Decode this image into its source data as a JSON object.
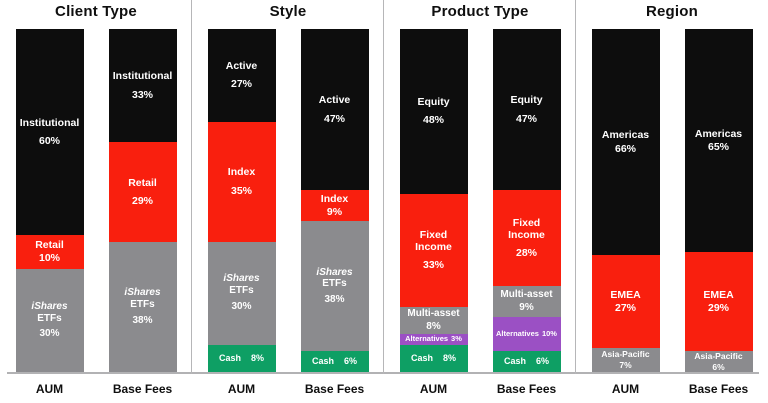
{
  "chart_data": {
    "type": "bar",
    "subtype": "stacked-100-percent",
    "unit": "%",
    "legend_position": "none",
    "grid": false,
    "palette": {
      "black": "#0d0d0d",
      "red": "#f91f0e",
      "gray": "#8b8b8e",
      "green": "#0e9f64",
      "purple": "#9b50c4",
      "baseline": "#b2b2b4",
      "divider": "#b6b6b8",
      "label_text": "#ffffff",
      "title_text": "#0f0f0f"
    },
    "groups": [
      {
        "title": "Client Type",
        "bars": [
          {
            "axis_label": "AUM",
            "segments": [
              {
                "lines": [
                  "Institutional"
                ],
                "value": "60%",
                "pct": 60,
                "color": "black",
                "size": "md"
              },
              {
                "lines": [
                  "Retail"
                ],
                "value": "10%",
                "pct": 10,
                "color": "red",
                "size": "md",
                "tight": true
              },
              {
                "lines": [
                  "iShares",
                  "ETFs"
                ],
                "value": "30%",
                "pct": 30,
                "color": "gray",
                "size": "sm",
                "italic_first": true
              }
            ]
          },
          {
            "axis_label": "Base Fees",
            "segments": [
              {
                "lines": [
                  "Institutional"
                ],
                "value": "33%",
                "pct": 33,
                "color": "black",
                "size": "md"
              },
              {
                "lines": [
                  "Retail"
                ],
                "value": "29%",
                "pct": 29,
                "color": "red",
                "size": "md"
              },
              {
                "lines": [
                  "iShares",
                  "ETFs"
                ],
                "value": "38%",
                "pct": 38,
                "color": "gray",
                "size": "sm",
                "italic_first": true
              }
            ]
          }
        ]
      },
      {
        "title": "Style",
        "bars": [
          {
            "axis_label": "AUM",
            "segments": [
              {
                "lines": [
                  "Active"
                ],
                "value": "27%",
                "pct": 27,
                "color": "black",
                "size": "md"
              },
              {
                "lines": [
                  "Index"
                ],
                "value": "35%",
                "pct": 35,
                "color": "red",
                "size": "md"
              },
              {
                "lines": [
                  "iShares",
                  "ETFs"
                ],
                "value": "30%",
                "pct": 30,
                "color": "gray",
                "size": "sm",
                "italic_first": true
              },
              {
                "lines": [
                  "Cash"
                ],
                "value": "8%",
                "pct": 8,
                "color": "green",
                "size": "cash",
                "inline": true
              }
            ]
          },
          {
            "axis_label": "Base Fees",
            "segments": [
              {
                "lines": [
                  "Active"
                ],
                "value": "47%",
                "pct": 47,
                "color": "black",
                "size": "md"
              },
              {
                "lines": [
                  "Index"
                ],
                "value": "9%",
                "pct": 9,
                "color": "red",
                "size": "md",
                "tight": true
              },
              {
                "lines": [
                  "iShares",
                  "ETFs"
                ],
                "value": "38%",
                "pct": 38,
                "color": "gray",
                "size": "sm",
                "italic_first": true
              },
              {
                "lines": [
                  "Cash"
                ],
                "value": "6%",
                "pct": 6,
                "color": "green",
                "size": "cash",
                "inline": true
              }
            ]
          }
        ]
      },
      {
        "title": "Product Type",
        "bars": [
          {
            "axis_label": "AUM",
            "segments": [
              {
                "lines": [
                  "Equity"
                ],
                "value": "48%",
                "pct": 48,
                "color": "black",
                "size": "md"
              },
              {
                "lines": [
                  "Fixed",
                  "Income"
                ],
                "value": "33%",
                "pct": 33,
                "color": "red",
                "size": "md"
              },
              {
                "lines": [
                  "Multi-asset"
                ],
                "value": "8%",
                "pct": 8,
                "color": "gray",
                "size": "sm",
                "tight": true
              },
              {
                "lines": [
                  "Alternatives"
                ],
                "value": "3%",
                "pct": 3,
                "color": "purple",
                "size": "xs",
                "inline": true
              },
              {
                "lines": [
                  "Cash"
                ],
                "value": "8%",
                "pct": 8,
                "color": "green",
                "size": "cash",
                "inline": true
              }
            ]
          },
          {
            "axis_label": "Base Fees",
            "segments": [
              {
                "lines": [
                  "Equity"
                ],
                "value": "47%",
                "pct": 47,
                "color": "black",
                "size": "md"
              },
              {
                "lines": [
                  "Fixed",
                  "Income"
                ],
                "value": "28%",
                "pct": 28,
                "color": "red",
                "size": "md"
              },
              {
                "lines": [
                  "Multi-asset"
                ],
                "value": "9%",
                "pct": 9,
                "color": "gray",
                "size": "sm",
                "tight": true
              },
              {
                "lines": [
                  "Alternatives"
                ],
                "value": "10%",
                "pct": 10,
                "color": "purple",
                "size": "xs",
                "inline": true
              },
              {
                "lines": [
                  "Cash"
                ],
                "value": "6%",
                "pct": 6,
                "color": "green",
                "size": "cash",
                "inline": true
              }
            ]
          }
        ]
      },
      {
        "title": "Region",
        "bars": [
          {
            "axis_label": "AUM",
            "segments": [
              {
                "lines": [
                  "Americas"
                ],
                "value": "66%",
                "pct": 66,
                "color": "black",
                "size": "md",
                "tight": true
              },
              {
                "lines": [
                  "EMEA"
                ],
                "value": "27%",
                "pct": 27,
                "color": "red",
                "size": "md",
                "tight": true
              },
              {
                "lines": [
                  "Asia-Pacific"
                ],
                "value": "7%",
                "pct": 7,
                "color": "gray",
                "size": "ap",
                "tight": true
              }
            ]
          },
          {
            "axis_label": "Base Fees",
            "segments": [
              {
                "lines": [
                  "Americas"
                ],
                "value": "65%",
                "pct": 65,
                "color": "black",
                "size": "md",
                "tight": true
              },
              {
                "lines": [
                  "EMEA"
                ],
                "value": "29%",
                "pct": 29,
                "color": "red",
                "size": "md",
                "tight": true
              },
              {
                "lines": [
                  "Asia-Pacific"
                ],
                "value": "6%",
                "pct": 6,
                "color": "gray",
                "size": "ap",
                "tight": true
              }
            ]
          }
        ]
      }
    ]
  }
}
